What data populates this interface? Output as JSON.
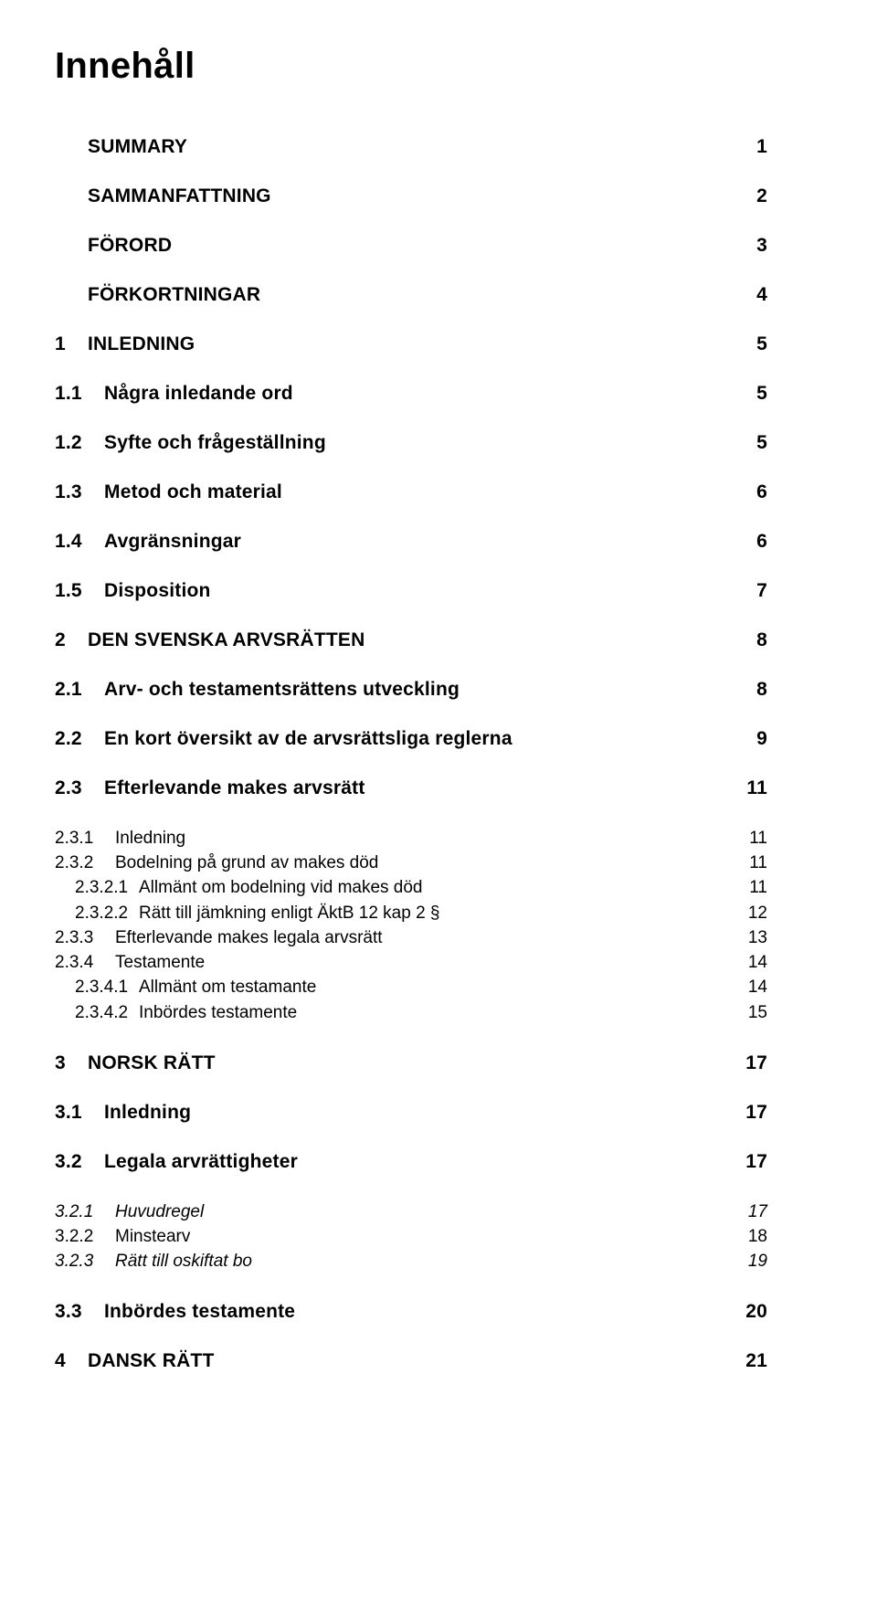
{
  "title": "Innehåll",
  "entries": [
    {
      "cls": "h1",
      "num": "",
      "label": "SUMMARY",
      "page": "1"
    },
    {
      "cls": "h1",
      "num": "",
      "label": "SAMMANFATTNING",
      "page": "2"
    },
    {
      "cls": "h1",
      "num": "",
      "label": "FÖRORD",
      "page": "3"
    },
    {
      "cls": "h1",
      "num": "",
      "label": "FÖRKORTNINGAR",
      "page": "4"
    },
    {
      "cls": "h1",
      "num": "1",
      "label": "INLEDNING",
      "page": "5"
    },
    {
      "cls": "h2",
      "num": "1.1",
      "label": "Några inledande ord",
      "page": "5"
    },
    {
      "cls": "h2",
      "num": "1.2",
      "label": "Syfte och frågeställning",
      "page": "5"
    },
    {
      "cls": "h2",
      "num": "1.3",
      "label": "Metod och material",
      "page": "6"
    },
    {
      "cls": "h2",
      "num": "1.4",
      "label": "Avgränsningar",
      "page": "6"
    },
    {
      "cls": "h2",
      "num": "1.5",
      "label": "Disposition",
      "page": "7"
    },
    {
      "cls": "h1",
      "num": "2",
      "label": "DEN SVENSKA ARVSRÄTTEN",
      "page": "8"
    },
    {
      "cls": "h2",
      "num": "2.1",
      "label": "Arv- och testamentsrättens utveckling",
      "page": "8"
    },
    {
      "cls": "h2",
      "num": "2.2",
      "label": "En kort översikt av de arvsrättsliga reglerna",
      "page": "9"
    },
    {
      "cls": "h2",
      "num": "2.3",
      "label": "Efterlevande makes arvsrätt",
      "page": "11",
      "extra": "gap-above-sm"
    },
    {
      "cls": "l3",
      "num": "2.3.1",
      "label": "Inledning",
      "page": "11"
    },
    {
      "cls": "l3",
      "num": "2.3.2",
      "label": "Bodelning på grund av makes död",
      "page": "11"
    },
    {
      "cls": "l4",
      "num": "2.3.2.1",
      "label": "Allmänt om bodelning vid makes död",
      "page": "11"
    },
    {
      "cls": "l4",
      "num": "2.3.2.2",
      "label": "Rätt till jämkning enligt ÄktB 12 kap 2 §",
      "page": "12"
    },
    {
      "cls": "l3",
      "num": "2.3.3",
      "label": "Efterlevande makes legala arvsrätt",
      "page": "13"
    },
    {
      "cls": "l3",
      "num": "2.3.4",
      "label": "Testamente",
      "page": "14"
    },
    {
      "cls": "l4",
      "num": "2.3.4.1",
      "label": "Allmänt om testamante",
      "page": "14"
    },
    {
      "cls": "l4",
      "num": "2.3.4.2",
      "label": "Inbördes testamente",
      "page": "15"
    },
    {
      "cls": "h1",
      "num": "3",
      "label": "NORSK RÄTT",
      "page": "17",
      "extra": "gap-above"
    },
    {
      "cls": "h2",
      "num": "3.1",
      "label": "Inledning",
      "page": "17"
    },
    {
      "cls": "h2",
      "num": "3.2",
      "label": "Legala arvrättigheter",
      "page": "17",
      "extra": "gap-above-sm"
    },
    {
      "cls": "l3i",
      "num": "3.2.1",
      "label": "Huvudregel",
      "page": "17"
    },
    {
      "cls": "l3",
      "num": "3.2.2",
      "label": "Minstearv",
      "page": "18"
    },
    {
      "cls": "l3i",
      "num": "3.2.3",
      "label": "Rätt till oskiftat bo",
      "page": "19"
    },
    {
      "cls": "h2",
      "num": "3.3",
      "label": "Inbördes testamente",
      "page": "20",
      "extra": "gap-above"
    },
    {
      "cls": "h1 last-block",
      "num": "4",
      "label": "DANSK RÄTT",
      "page": "21"
    }
  ]
}
